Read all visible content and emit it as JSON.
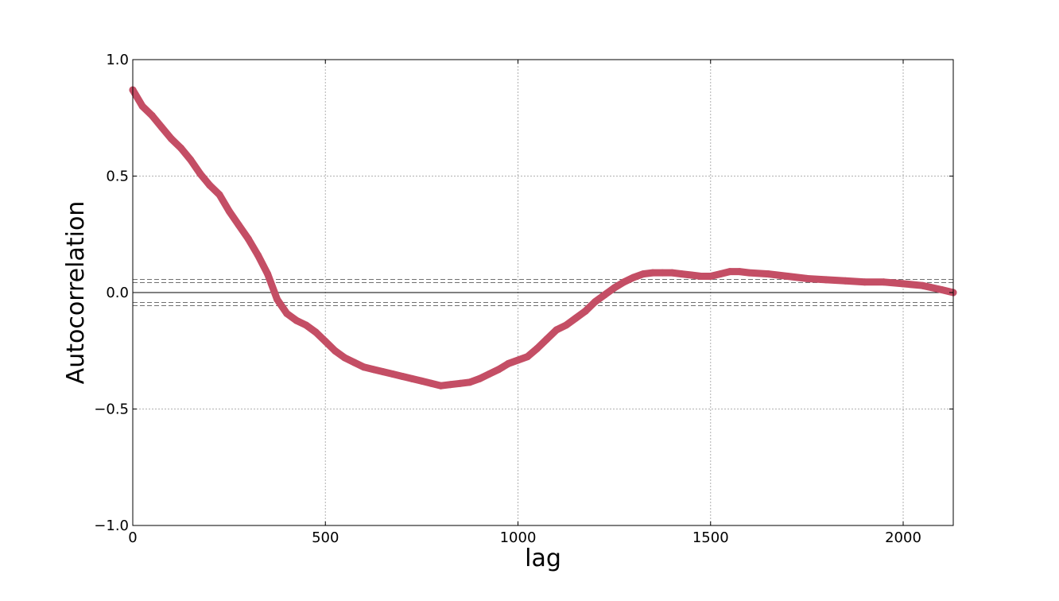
{
  "chart_data": {
    "type": "line",
    "title": "",
    "xlabel": "lag",
    "ylabel": "Autocorrelation",
    "xlim": [
      0,
      2130
    ],
    "ylim": [
      -1.0,
      1.0
    ],
    "xticks": [
      0,
      500,
      1000,
      1500,
      2000
    ],
    "xtick_labels": [
      "0",
      "500",
      "1000",
      "1500",
      "2000"
    ],
    "yticks": [
      1.0,
      0.5,
      0.0,
      -0.5,
      -1.0
    ],
    "ytick_labels": [
      "1.0",
      "0.5",
      "0.0",
      "−0.5",
      "−1.0"
    ],
    "grid": true,
    "zero_line": 0.0,
    "confidence_band": [
      0.0425,
      0.0565,
      -0.0425,
      -0.0565
    ],
    "series": [
      {
        "color": "#c44e65",
        "x": [
          0,
          25,
          50,
          75,
          100,
          125,
          150,
          175,
          200,
          225,
          250,
          275,
          300,
          325,
          350,
          375,
          400,
          425,
          450,
          475,
          500,
          525,
          550,
          575,
          600,
          625,
          650,
          675,
          700,
          725,
          750,
          775,
          800,
          825,
          850,
          875,
          900,
          925,
          950,
          975,
          1000,
          1025,
          1050,
          1075,
          1100,
          1125,
          1150,
          1175,
          1200,
          1225,
          1250,
          1275,
          1300,
          1325,
          1350,
          1375,
          1400,
          1425,
          1450,
          1475,
          1500,
          1525,
          1550,
          1575,
          1600,
          1650,
          1700,
          1750,
          1800,
          1850,
          1900,
          1950,
          2000,
          2050,
          2100,
          2130
        ],
        "y": [
          0.87,
          0.8,
          0.76,
          0.71,
          0.66,
          0.62,
          0.57,
          0.51,
          0.46,
          0.42,
          0.35,
          0.29,
          0.23,
          0.16,
          0.08,
          -0.03,
          -0.09,
          -0.12,
          -0.14,
          -0.17,
          -0.21,
          -0.25,
          -0.28,
          -0.3,
          -0.32,
          -0.33,
          -0.34,
          -0.35,
          -0.36,
          -0.37,
          -0.38,
          -0.39,
          -0.4,
          -0.395,
          -0.39,
          -0.385,
          -0.37,
          -0.35,
          -0.33,
          -0.305,
          -0.29,
          -0.275,
          -0.24,
          -0.2,
          -0.16,
          -0.14,
          -0.11,
          -0.08,
          -0.04,
          -0.01,
          0.02,
          0.045,
          0.065,
          0.08,
          0.085,
          0.085,
          0.085,
          0.08,
          0.075,
          0.07,
          0.07,
          0.08,
          0.09,
          0.09,
          0.085,
          0.08,
          0.07,
          0.06,
          0.055,
          0.05,
          0.045,
          0.045,
          0.038,
          0.03,
          0.012,
          0.0
        ]
      }
    ]
  }
}
